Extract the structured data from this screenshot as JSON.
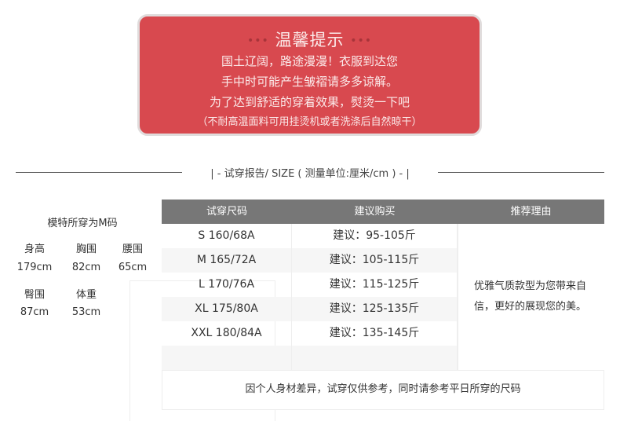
{
  "notice": {
    "title": "温馨提示",
    "dots": "•••",
    "lines": [
      "国土辽阔，路途漫漫！衣服到达您",
      "手中时可能产生皱褶请多多谅解。",
      "为了达到舒适的穿着效果，熨烫一下吧",
      "（不耐高温面料可用挂烫机或者洗涤后自然晾干）"
    ],
    "bg_color": "#d8494f"
  },
  "section": {
    "heading": "| - 试穿报告/ SIZE ( 测量单位:厘米/cm ) - |"
  },
  "model": {
    "title": "模特所穿为M码",
    "measures": [
      {
        "label": "身高",
        "value": "179cm"
      },
      {
        "label": "胸围",
        "value": "82cm"
      },
      {
        "label": "腰围",
        "value": "65cm"
      },
      {
        "label": "臀围",
        "value": "87cm"
      },
      {
        "label": "体重",
        "value": "53cm"
      }
    ]
  },
  "table": {
    "headers": [
      "试穿尺码",
      "建议购买",
      "推荐理由"
    ],
    "rows": [
      {
        "size": "S 160/68A",
        "advice": "建议：95-105斤"
      },
      {
        "size": "M 165/72A",
        "advice": "建议：105-115斤"
      },
      {
        "size": "L 170/76A",
        "advice": "建议：115-125斤"
      },
      {
        "size": "XL 175/80A",
        "advice": "建议：125-135斤"
      },
      {
        "size": "XXL 180/84A",
        "advice": "建议：135-145斤"
      }
    ],
    "reason": "优雅气质款型为您带来自信，更好的展现您的美。",
    "footer": "因个人身材差异，试穿仅供参考，同时请参考平日所穿的尺码"
  }
}
